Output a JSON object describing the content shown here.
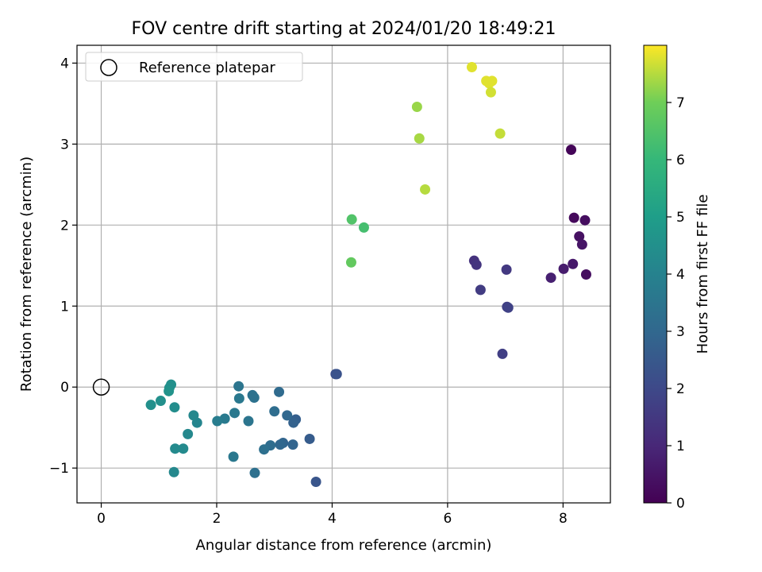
{
  "chart_data": {
    "type": "scatter",
    "title": "FOV centre drift starting at 2024/01/20 18:49:21",
    "xlabel": "Angular distance from reference (arcmin)",
    "ylabel": "Rotation from reference (arcmin)",
    "xlim": [
      -0.42,
      8.82
    ],
    "ylim": [
      -1.43,
      4.22
    ],
    "xticks": [
      0,
      2,
      4,
      6,
      8
    ],
    "yticks": [
      -1,
      0,
      1,
      2,
      3,
      4
    ],
    "grid": true,
    "legend": {
      "placement": "top-left",
      "entries": [
        "Reference platepar"
      ]
    },
    "reference_point": {
      "x": 0,
      "y": 0,
      "label": "Reference platepar"
    },
    "colorbar": {
      "label": "Hours from first FF file",
      "range": [
        0,
        8
      ],
      "ticks": [
        0,
        1,
        2,
        3,
        4,
        5,
        6,
        7
      ],
      "colormap": "viridis"
    },
    "points": [
      {
        "x": 8.14,
        "y": 2.93,
        "c": 0.1
      },
      {
        "x": 8.19,
        "y": 2.09,
        "c": 0.2
      },
      {
        "x": 8.38,
        "y": 2.06,
        "c": 0.3
      },
      {
        "x": 8.28,
        "y": 1.86,
        "c": 0.4
      },
      {
        "x": 8.33,
        "y": 1.76,
        "c": 0.5
      },
      {
        "x": 8.4,
        "y": 1.39,
        "c": 0.3
      },
      {
        "x": 8.17,
        "y": 1.52,
        "c": 0.6
      },
      {
        "x": 8.01,
        "y": 1.46,
        "c": 0.7
      },
      {
        "x": 7.79,
        "y": 1.35,
        "c": 0.8
      },
      {
        "x": 6.46,
        "y": 1.56,
        "c": 1.3
      },
      {
        "x": 6.5,
        "y": 1.51,
        "c": 1.4
      },
      {
        "x": 7.02,
        "y": 1.45,
        "c": 1.5
      },
      {
        "x": 6.57,
        "y": 1.2,
        "c": 1.6
      },
      {
        "x": 7.03,
        "y": 0.99,
        "c": 1.7
      },
      {
        "x": 7.05,
        "y": 0.98,
        "c": 1.8
      },
      {
        "x": 6.95,
        "y": 0.41,
        "c": 1.7
      },
      {
        "x": 4.06,
        "y": 0.16,
        "c": 2.2
      },
      {
        "x": 4.08,
        "y": 0.16,
        "c": 2.3
      },
      {
        "x": 3.72,
        "y": -1.17,
        "c": 2.4
      },
      {
        "x": 3.61,
        "y": -0.64,
        "c": 2.6
      },
      {
        "x": 3.37,
        "y": -0.4,
        "c": 2.7
      },
      {
        "x": 3.33,
        "y": -0.44,
        "c": 2.8
      },
      {
        "x": 3.32,
        "y": -0.71,
        "c": 2.9
      },
      {
        "x": 3.22,
        "y": -0.35,
        "c": 3.0
      },
      {
        "x": 3.08,
        "y": -0.06,
        "c": 3.1
      },
      {
        "x": 3.15,
        "y": -0.69,
        "c": 2.9
      },
      {
        "x": 3.1,
        "y": -0.71,
        "c": 3.0
      },
      {
        "x": 3.0,
        "y": -0.3,
        "c": 3.2
      },
      {
        "x": 2.93,
        "y": -0.72,
        "c": 3.2
      },
      {
        "x": 2.82,
        "y": -0.77,
        "c": 3.3
      },
      {
        "x": 2.65,
        "y": -0.13,
        "c": 3.4
      },
      {
        "x": 2.62,
        "y": -0.1,
        "c": 3.4
      },
      {
        "x": 2.66,
        "y": -1.06,
        "c": 3.3
      },
      {
        "x": 2.55,
        "y": -0.42,
        "c": 3.5
      },
      {
        "x": 2.38,
        "y": 0.01,
        "c": 3.5
      },
      {
        "x": 2.39,
        "y": -0.14,
        "c": 3.6
      },
      {
        "x": 2.31,
        "y": -0.32,
        "c": 3.6
      },
      {
        "x": 2.29,
        "y": -0.86,
        "c": 3.6
      },
      {
        "x": 2.14,
        "y": -0.39,
        "c": 3.7
      },
      {
        "x": 2.01,
        "y": -0.42,
        "c": 3.8
      },
      {
        "x": 1.66,
        "y": -0.44,
        "c": 4.1
      },
      {
        "x": 1.6,
        "y": -0.35,
        "c": 4.2
      },
      {
        "x": 1.5,
        "y": -0.58,
        "c": 4.2
      },
      {
        "x": 1.42,
        "y": -0.76,
        "c": 4.3
      },
      {
        "x": 1.28,
        "y": -0.76,
        "c": 4.3
      },
      {
        "x": 1.26,
        "y": -1.05,
        "c": 4.2
      },
      {
        "x": 1.27,
        "y": -0.25,
        "c": 4.4
      },
      {
        "x": 1.21,
        "y": 0.03,
        "c": 4.5
      },
      {
        "x": 1.18,
        "y": -0.01,
        "c": 4.5
      },
      {
        "x": 1.17,
        "y": -0.05,
        "c": 4.6
      },
      {
        "x": 1.03,
        "y": -0.17,
        "c": 4.5
      },
      {
        "x": 0.86,
        "y": -0.22,
        "c": 4.5
      },
      {
        "x": 4.34,
        "y": 2.07,
        "c": 6.5
      },
      {
        "x": 4.55,
        "y": 1.97,
        "c": 6.3
      },
      {
        "x": 4.33,
        "y": 1.54,
        "c": 6.8
      },
      {
        "x": 5.47,
        "y": 3.46,
        "c": 7.3
      },
      {
        "x": 5.51,
        "y": 3.07,
        "c": 7.4
      },
      {
        "x": 5.61,
        "y": 2.44,
        "c": 7.5
      },
      {
        "x": 6.42,
        "y": 3.95,
        "c": 7.8
      },
      {
        "x": 6.67,
        "y": 3.78,
        "c": 7.8
      },
      {
        "x": 6.77,
        "y": 3.78,
        "c": 7.8
      },
      {
        "x": 6.72,
        "y": 3.75,
        "c": 7.8
      },
      {
        "x": 6.75,
        "y": 3.64,
        "c": 7.7
      },
      {
        "x": 6.91,
        "y": 3.13,
        "c": 7.6
      }
    ]
  }
}
